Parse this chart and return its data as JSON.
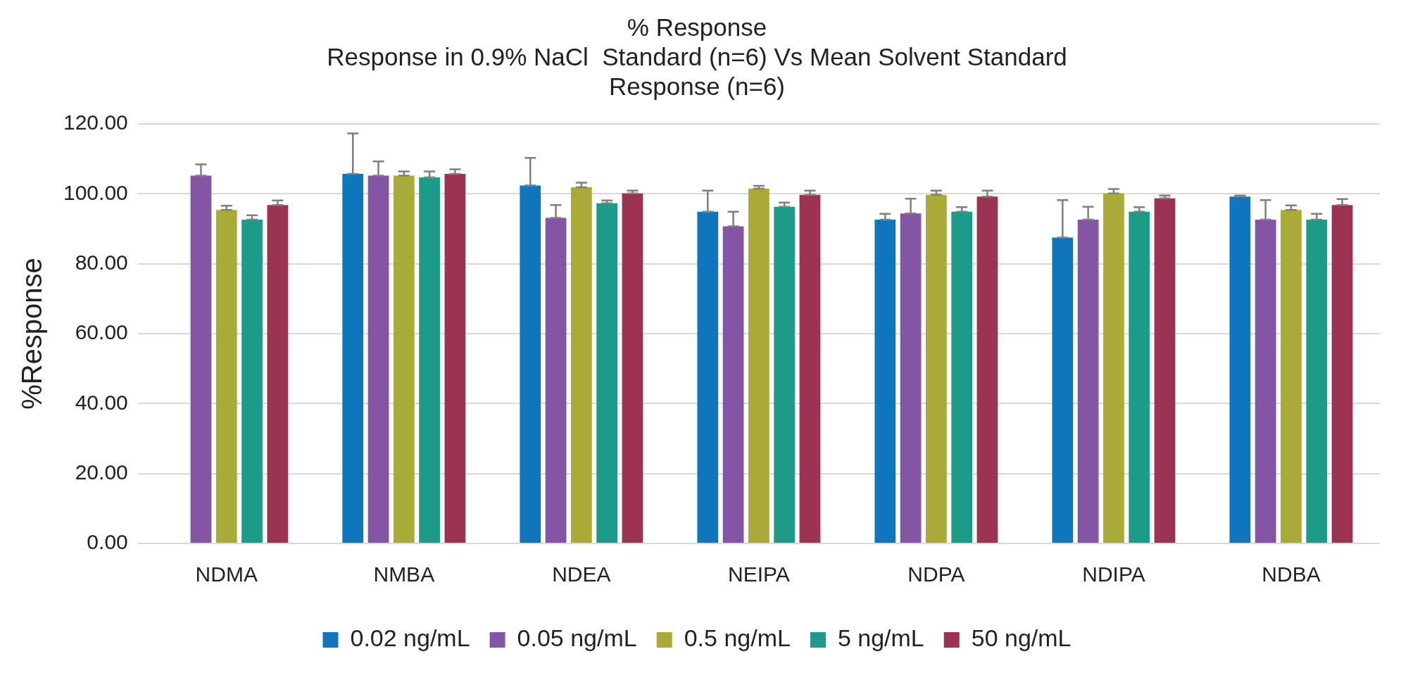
{
  "chart_data": {
    "type": "bar",
    "title": [
      "% Response",
      "Response in 0.9% NaCl  Standard (n=6) Vs Mean Solvent Standard",
      "Response (n=6)"
    ],
    "ylabel": "%Response",
    "categories": [
      "NDMA",
      "NMBA",
      "NDEA",
      "NEIPA",
      "NDPA",
      "NDIPA",
      "NDBA"
    ],
    "series": [
      {
        "name": "0.02 ng/mL",
        "color": "#0f75bc",
        "values": [
          null,
          105.7,
          102.4,
          94.9,
          92.6,
          87.5,
          99.2
        ],
        "errors": [
          null,
          [
            105.7,
            117.3
          ],
          [
            102.4,
            110.3
          ],
          [
            94.9,
            100.9
          ],
          [
            92.6,
            94.3
          ],
          [
            87.5,
            98.2
          ],
          [
            99.2,
            99.5
          ]
        ]
      },
      {
        "name": "0.05 ng/mL",
        "color": "#8454a5",
        "values": [
          105.2,
          105.2,
          93.1,
          90.7,
          94.4,
          92.6,
          92.6
        ],
        "errors": [
          [
            105.2,
            108.4
          ],
          [
            105.2,
            109.3
          ],
          [
            93.1,
            96.8
          ],
          [
            90.7,
            94.9
          ],
          [
            94.4,
            98.6
          ],
          [
            92.6,
            96.3
          ],
          [
            92.6,
            98.2
          ]
        ]
      },
      {
        "name": "0.5 ng/mL",
        "color": "#aaaa38",
        "values": [
          95.4,
          105.2,
          101.9,
          101.5,
          99.7,
          100.1,
          95.4
        ],
        "errors": [
          [
            95.4,
            96.6
          ],
          [
            105.2,
            106.4
          ],
          [
            101.9,
            103.2
          ],
          [
            101.5,
            102.3
          ],
          [
            99.7,
            100.9
          ],
          [
            100.1,
            101.4
          ],
          [
            95.4,
            96.7
          ]
        ]
      },
      {
        "name": "5 ng/mL",
        "color": "#1c9c88",
        "values": [
          92.6,
          104.7,
          97.3,
          96.3,
          94.9,
          94.9,
          92.6
        ],
        "errors": [
          [
            92.6,
            93.9
          ],
          [
            104.7,
            106.4
          ],
          [
            97.3,
            98.1
          ],
          [
            96.3,
            97.5
          ],
          [
            94.9,
            96.2
          ],
          [
            94.9,
            96.2
          ],
          [
            92.6,
            94.3
          ]
        ]
      },
      {
        "name": "50 ng/mL",
        "color": "#9b3353",
        "values": [
          96.8,
          105.7,
          100.1,
          99.7,
          99.2,
          98.7,
          96.8
        ],
        "errors": [
          [
            96.8,
            98.1
          ],
          [
            105.7,
            107
          ],
          [
            100.1,
            100.9
          ],
          [
            99.7,
            100.9
          ],
          [
            99.2,
            100.9
          ],
          [
            98.7,
            99.5
          ],
          [
            96.8,
            98.5
          ]
        ]
      }
    ],
    "ylim": [
      0,
      120
    ],
    "yticks": [
      {
        "value": 0,
        "label": "0.00"
      },
      {
        "value": 20,
        "label": "20.00"
      },
      {
        "value": 40,
        "label": "40.00"
      },
      {
        "value": 60,
        "label": "60.00"
      },
      {
        "value": 80,
        "label": "80.00"
      },
      {
        "value": 100,
        "label": "100.00"
      },
      {
        "value": 120,
        "label": "120.00"
      }
    ],
    "grid": "y",
    "legend": "bottom"
  }
}
